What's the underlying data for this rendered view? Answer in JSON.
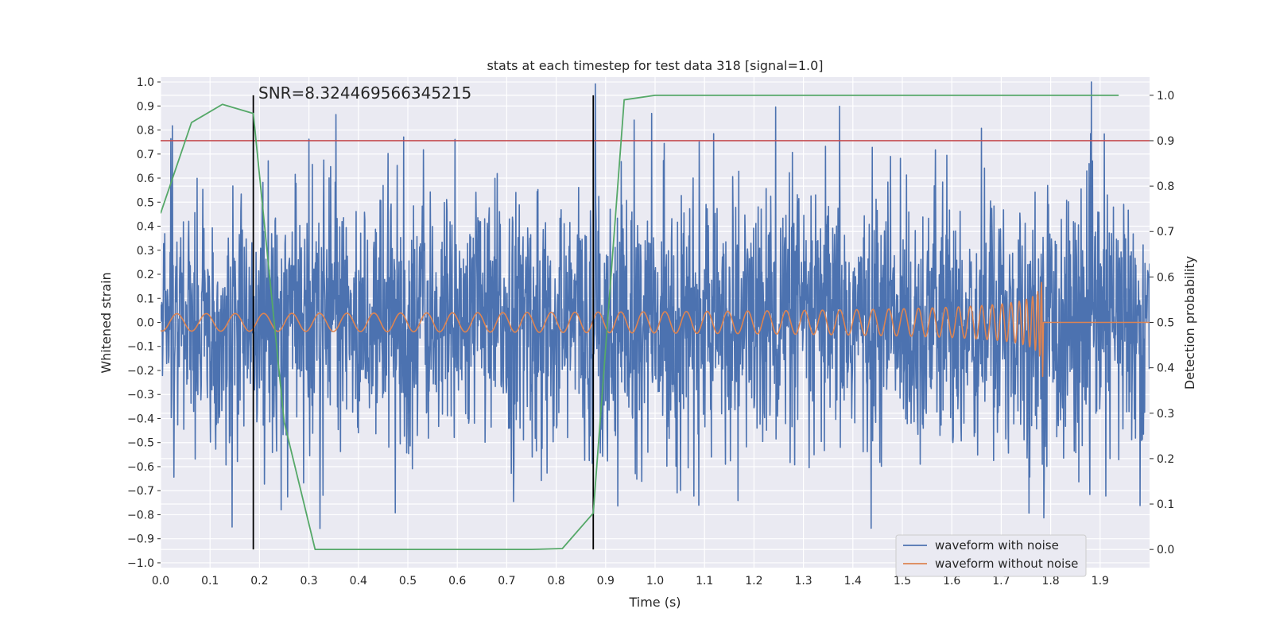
{
  "chart_data": {
    "type": "line",
    "title": "stats at each timestep for test data 318 [signal=1.0]",
    "xlabel": "Time (s)",
    "ylabel_left": "Whitened strain",
    "ylabel_right": "Detection probability",
    "annotation": "SNR=8.324469566345215",
    "xlim": [
      0.0,
      2.0
    ],
    "ylim_left": [
      -1.02,
      1.02
    ],
    "ylim_right": [
      -0.04,
      1.04
    ],
    "x_ticks": [
      "0.0",
      "0.1",
      "0.2",
      "0.3",
      "0.4",
      "0.5",
      "0.6",
      "0.7",
      "0.8",
      "0.9",
      "1.0",
      "1.1",
      "1.2",
      "1.3",
      "1.4",
      "1.5",
      "1.6",
      "1.7",
      "1.8",
      "1.9"
    ],
    "y_left_ticks": [
      "1.0",
      "0.9",
      "0.8",
      "0.7",
      "0.6",
      "0.5",
      "0.4",
      "0.3",
      "0.2",
      "0.1",
      "0.0",
      "−0.1",
      "−0.2",
      "−0.3",
      "−0.4",
      "−0.5",
      "−0.6",
      "−0.7",
      "−0.8",
      "−0.9",
      "−1.0"
    ],
    "y_right_ticks": [
      "1.0",
      "0.9",
      "0.8",
      "0.7",
      "0.6",
      "0.5",
      "0.4",
      "0.3",
      "0.2",
      "0.1",
      "0.0"
    ],
    "grid": true,
    "legend_position": "bottom-right",
    "series": [
      {
        "name": "waveform with noise",
        "axis": "left",
        "color": "#4c72b0",
        "description": "dense noisy strain, amplitude roughly between -0.9 and 1.0"
      },
      {
        "name": "waveform without noise",
        "axis": "left",
        "color": "#dd8452",
        "description": "chirp with amplitude ~0.04 rising to ~0.33 near t=1.78 s, zero after"
      },
      {
        "name": "",
        "axis": "right",
        "color": "#55a868",
        "x": [
          0.0,
          0.0625,
          0.125,
          0.1875,
          0.25,
          0.3125,
          0.375,
          0.4375,
          0.5,
          0.5625,
          0.625,
          0.6875,
          0.75,
          0.8125,
          0.875,
          0.9375,
          1.0,
          1.0625,
          1.125,
          1.1875,
          1.25,
          1.3125,
          1.375,
          1.4375,
          1.5,
          1.5625,
          1.625,
          1.6875,
          1.75,
          1.8125,
          1.875,
          1.9375
        ],
        "values": [
          0.74,
          0.94,
          0.98,
          0.96,
          0.28,
          0.0,
          0.0,
          0.0,
          0.0,
          0.0,
          0.0,
          0.0,
          0.0,
          0.002,
          0.08,
          0.99,
          1.0,
          1.0,
          1.0,
          1.0,
          1.0,
          1.0,
          1.0,
          1.0,
          1.0,
          1.0,
          1.0,
          1.0,
          1.0,
          1.0,
          1.0,
          1.0
        ]
      }
    ],
    "threshold_line": {
      "value": 0.9,
      "axis": "right",
      "color": "#c44e52"
    },
    "vertical_markers": {
      "x": [
        0.1875,
        0.875
      ],
      "color": "#000000"
    },
    "colors": {
      "plot_background": "#eaeaf2",
      "grid": "#ffffff",
      "legend_background": "#eaeaf2"
    }
  }
}
